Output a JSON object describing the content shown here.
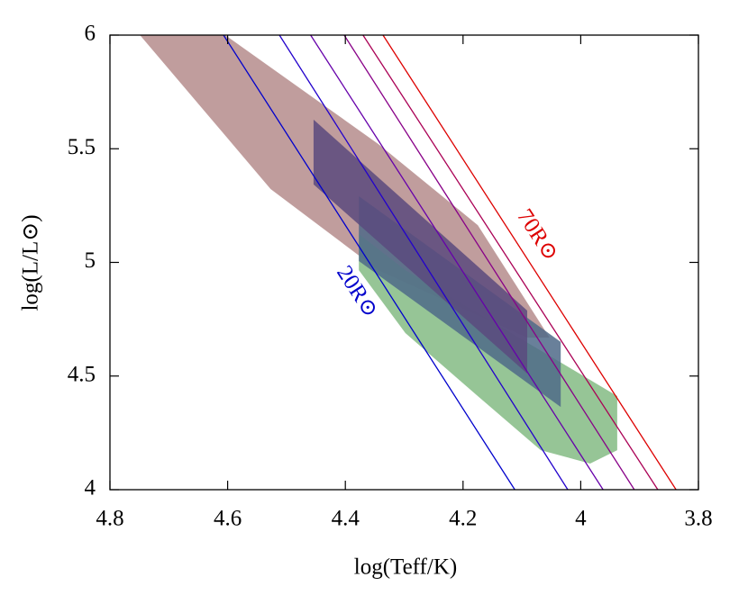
{
  "chart_data": {
    "type": "area",
    "x_label": "log(Teff/K)",
    "y_label": "log(L/L⊙)",
    "xlim": [
      4.8,
      3.8
    ],
    "ylim": [
      4,
      6
    ],
    "xticks": [
      4.8,
      4.6,
      4.4,
      4.2,
      4,
      3.8
    ],
    "yticks": [
      4,
      4.5,
      5,
      5.5,
      6
    ],
    "series": [
      {
        "color": "#b58c8c",
        "x": [
          4.749,
          4.604,
          4.344,
          4.175,
          4.053,
          4.091,
          4.344,
          4.405,
          4.527
        ],
        "y": [
          6,
          6,
          5.521,
          5.164,
          4.669,
          4.669,
          4.966,
          5.085,
          5.323
        ]
      },
      {
        "color": "#84bb84",
        "x": [
          4.377,
          4.298,
          3.938,
          3.938,
          3.984,
          4.068,
          4.175,
          4.298,
          4.377
        ],
        "y": [
          5.125,
          4.966,
          4.412,
          4.174,
          4.115,
          4.174,
          4.412,
          4.689,
          4.966
        ]
      },
      {
        "color": "#4f6a88",
        "x": [
          4.377,
          4.034,
          4.034,
          4.377
        ],
        "y": [
          5.291,
          4.65,
          4.364,
          5.006
        ]
      },
      {
        "color": "#5a4a7e",
        "x": [
          4.454,
          4.091,
          4.091,
          4.454
        ],
        "y": [
          5.628,
          4.788,
          4.511,
          5.343
        ]
      }
    ],
    "lines": [
      {
        "color": "#0000cc",
        "x": [
          4.607,
          4.112
        ],
        "y": [
          6,
          4
        ]
      },
      {
        "color": "#2200cc",
        "x": [
          4.512,
          4.022
        ],
        "y": [
          6,
          4
        ]
      },
      {
        "color": "#6600aa",
        "x": [
          4.459,
          3.962
        ],
        "y": [
          6,
          4
        ]
      },
      {
        "color": "#880088",
        "x": [
          4.402,
          3.909
        ],
        "y": [
          6,
          4
        ]
      },
      {
        "color": "#aa0055",
        "x": [
          4.37,
          3.869
        ],
        "y": [
          6,
          4
        ]
      },
      {
        "color": "#dd0000",
        "x": [
          4.336,
          3.838
        ],
        "y": [
          6,
          4
        ]
      }
    ],
    "annotations": [
      {
        "text": "20R⊙",
        "color": "#0000cc"
      },
      {
        "text": "70R⊙",
        "color": "#dd0000"
      }
    ]
  }
}
